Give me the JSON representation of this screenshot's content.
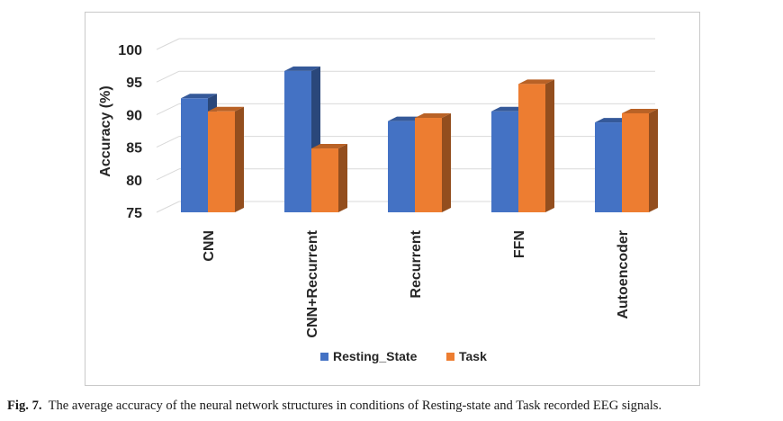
{
  "caption": {
    "label": "Fig. 7.",
    "text": "The average accuracy of the neural network structures in conditions of Resting-state and Task recorded EEG signals."
  },
  "chart_data": {
    "type": "bar",
    "style": "3d-clustered-column",
    "ylabel": "Accuracy (%)",
    "xlabel": "",
    "ylim": [
      75,
      100
    ],
    "yticks": [
      75,
      80,
      85,
      90,
      95,
      100
    ],
    "grid": true,
    "legend_position": "bottom",
    "categories": [
      "CNN",
      "CNN+Recurrent",
      "Recurrent",
      "FFN",
      "Autoencoder"
    ],
    "series": [
      {
        "name": "Resting_State",
        "color": "#4472c4",
        "values": [
          92.5,
          96.7,
          89.0,
          90.5,
          88.8
        ]
      },
      {
        "name": "Task",
        "color": "#ed7d31",
        "values": [
          90.5,
          84.8,
          89.5,
          94.7,
          90.2
        ]
      }
    ]
  }
}
